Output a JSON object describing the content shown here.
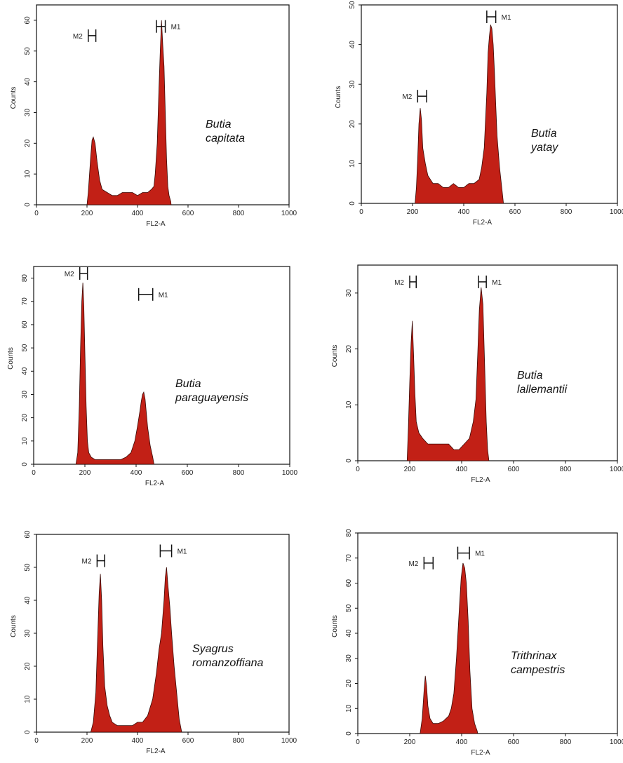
{
  "figure": {
    "panel_count": 6
  },
  "chart_data": [
    {
      "type": "area",
      "species": [
        "Butia",
        "capitata"
      ],
      "xlabel": "FL2-A",
      "ylabel": "Counts",
      "xlim": [
        0,
        1000
      ],
      "ylim": [
        0,
        65
      ],
      "xticks": [
        "0",
        "200",
        "400",
        "600",
        "800",
        "1000"
      ],
      "yticks": [
        "0",
        "10",
        "20",
        "30",
        "40",
        "50",
        "60"
      ],
      "series": [
        {
          "x": [
            200,
            205,
            215,
            220,
            225,
            232,
            240,
            250,
            260,
            280,
            300,
            320,
            340,
            360,
            380,
            400,
            420,
            440,
            455,
            465,
            470,
            478,
            485,
            490,
            495,
            500,
            505,
            510,
            515,
            520,
            525,
            532,
            533
          ],
          "values": [
            0,
            4,
            16,
            21,
            22,
            20,
            14,
            8,
            5,
            4,
            3,
            3,
            4,
            4,
            4,
            3,
            4,
            4,
            5,
            6,
            10,
            20,
            38,
            50,
            60,
            52,
            45,
            30,
            15,
            6,
            3,
            1,
            0
          ]
        }
      ],
      "markers": [
        {
          "label": "M2",
          "start": 205,
          "end": 235,
          "y": 55
        },
        {
          "label": "M1",
          "start": 475,
          "end": 510,
          "y": 58
        }
      ],
      "fill_color": "#c22016"
    },
    {
      "type": "area",
      "species": [
        "Butia",
        "yatay"
      ],
      "xlabel": "FL2-A",
      "ylabel": "Counts",
      "xlim": [
        0,
        1000
      ],
      "ylim": [
        0,
        50
      ],
      "xticks": [
        "0",
        "200",
        "400",
        "600",
        "800",
        "1000"
      ],
      "yticks": [
        "0",
        "10",
        "20",
        "30",
        "40",
        "50"
      ],
      "series": [
        {
          "x": [
            210,
            215,
            220,
            225,
            230,
            235,
            240,
            250,
            260,
            280,
            300,
            320,
            340,
            360,
            380,
            400,
            420,
            440,
            460,
            470,
            480,
            490,
            495,
            500,
            505,
            510,
            515,
            520,
            525,
            530,
            540,
            550,
            555
          ],
          "values": [
            0,
            4,
            11,
            20,
            24,
            21,
            14,
            10,
            7,
            5,
            5,
            4,
            4,
            5,
            4,
            4,
            5,
            5,
            6,
            9,
            14,
            28,
            38,
            42,
            45,
            44,
            40,
            33,
            25,
            17,
            9,
            3,
            0
          ]
        }
      ],
      "markers": [
        {
          "label": "M2",
          "start": 220,
          "end": 255,
          "y": 27
        },
        {
          "label": "M1",
          "start": 490,
          "end": 525,
          "y": 47
        }
      ],
      "fill_color": "#c22016"
    },
    {
      "type": "area",
      "species": [
        "Butia",
        "paraguayensis"
      ],
      "xlabel": "FL2-A",
      "ylabel": "Counts",
      "xlim": [
        0,
        1000
      ],
      "ylim": [
        0,
        85
      ],
      "xticks": [
        "0",
        "200",
        "400",
        "600",
        "800",
        "1000"
      ],
      "yticks": [
        "0",
        "10",
        "20",
        "30",
        "40",
        "50",
        "60",
        "70",
        "80"
      ],
      "series": [
        {
          "x": [
            165,
            172,
            178,
            183,
            188,
            192,
            196,
            200,
            205,
            210,
            215,
            225,
            240,
            260,
            280,
            300,
            320,
            340,
            360,
            380,
            395,
            405,
            415,
            420,
            425,
            430,
            435,
            440,
            445,
            455,
            465,
            470
          ],
          "values": [
            0,
            5,
            25,
            50,
            70,
            78,
            68,
            48,
            25,
            10,
            5,
            3,
            2,
            2,
            2,
            2,
            2,
            2,
            3,
            5,
            10,
            16,
            23,
            27,
            30,
            31,
            28,
            22,
            16,
            8,
            3,
            0
          ]
        }
      ],
      "markers": [
        {
          "label": "M2",
          "start": 180,
          "end": 210,
          "y": 82
        },
        {
          "label": "M1",
          "start": 410,
          "end": 465,
          "y": 73
        }
      ],
      "fill_color": "#c22016"
    },
    {
      "type": "area",
      "species": [
        "Butia",
        "lallemantii"
      ],
      "xlabel": "FL2-A",
      "ylabel": "Counts",
      "xlim": [
        0,
        1000
      ],
      "ylim": [
        0,
        35
      ],
      "xticks": [
        "0",
        "200",
        "400",
        "600",
        "800",
        "1000"
      ],
      "yticks": [
        "0",
        "10",
        "20",
        "30"
      ],
      "series": [
        {
          "x": [
            190,
            195,
            200,
            205,
            210,
            215,
            220,
            225,
            235,
            250,
            270,
            290,
            310,
            330,
            350,
            370,
            390,
            410,
            430,
            445,
            455,
            462,
            468,
            475,
            482,
            488,
            495,
            500,
            505
          ],
          "values": [
            0,
            6,
            14,
            21,
            25,
            19,
            12,
            7,
            5,
            4,
            3,
            3,
            3,
            3,
            3,
            2,
            2,
            3,
            4,
            7,
            11,
            19,
            27,
            31,
            28,
            18,
            7,
            2,
            0
          ]
        }
      ],
      "markers": [
        {
          "label": "M2",
          "start": 200,
          "end": 225,
          "y": 32
        },
        {
          "label": "M1",
          "start": 465,
          "end": 495,
          "y": 32
        }
      ],
      "fill_color": "#c22016"
    },
    {
      "type": "area",
      "species": [
        "Syagrus",
        "romanzoffiana"
      ],
      "xlabel": "FL2-A",
      "ylabel": "Counts",
      "xlim": [
        0,
        1000
      ],
      "ylim": [
        0,
        60
      ],
      "xticks": [
        "0",
        "200",
        "400",
        "600",
        "800",
        "1000"
      ],
      "yticks": [
        "0",
        "10",
        "20",
        "30",
        "40",
        "50",
        "60"
      ],
      "series": [
        {
          "x": [
            215,
            225,
            235,
            242,
            248,
            253,
            258,
            263,
            270,
            280,
            290,
            300,
            320,
            340,
            360,
            380,
            400,
            420,
            440,
            460,
            475,
            485,
            495,
            505,
            510,
            515,
            520,
            528,
            535,
            545,
            555,
            565,
            575
          ],
          "values": [
            0,
            3,
            12,
            28,
            42,
            48,
            40,
            26,
            14,
            8,
            5,
            3,
            2,
            2,
            2,
            2,
            3,
            3,
            5,
            10,
            18,
            25,
            30,
            40,
            47,
            50,
            45,
            38,
            30,
            20,
            12,
            4,
            0
          ]
        }
      ],
      "markers": [
        {
          "label": "M2",
          "start": 240,
          "end": 270,
          "y": 52
        },
        {
          "label": "M1",
          "start": 490,
          "end": 535,
          "y": 55
        }
      ],
      "fill_color": "#c22016"
    },
    {
      "type": "area",
      "species": [
        "Trithrinax",
        "campestris"
      ],
      "xlabel": "FL2-A",
      "ylabel": "Counts",
      "xlim": [
        0,
        1000
      ],
      "ylim": [
        0,
        80
      ],
      "xticks": [
        "0",
        "200",
        "400",
        "600",
        "800",
        "1000"
      ],
      "yticks": [
        "0",
        "10",
        "20",
        "30",
        "40",
        "50",
        "60",
        "70",
        "80"
      ],
      "series": [
        {
          "x": [
            240,
            248,
            255,
            260,
            265,
            270,
            278,
            290,
            310,
            330,
            350,
            360,
            370,
            380,
            390,
            398,
            405,
            412,
            418,
            425,
            432,
            440,
            450,
            460,
            462
          ],
          "values": [
            0,
            6,
            17,
            23,
            19,
            11,
            6,
            4,
            4,
            5,
            7,
            10,
            16,
            30,
            48,
            62,
            68,
            66,
            60,
            45,
            25,
            10,
            4,
            1,
            0
          ]
        }
      ],
      "markers": [
        {
          "label": "M2",
          "start": 255,
          "end": 290,
          "y": 68
        },
        {
          "label": "M1",
          "start": 385,
          "end": 430,
          "y": 72
        }
      ],
      "fill_color": "#c22016"
    }
  ]
}
